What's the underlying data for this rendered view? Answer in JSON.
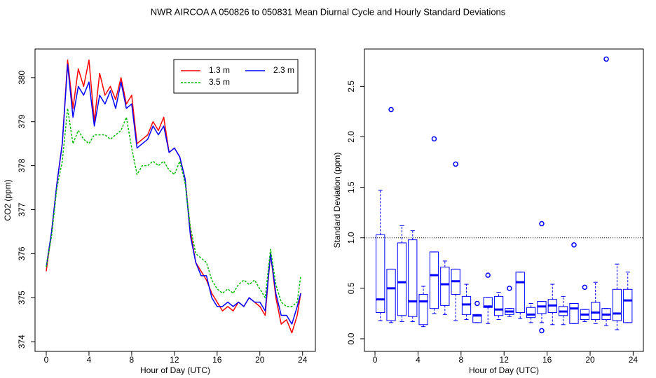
{
  "title": "NWR   AIRCOA A   050826 to 050831   Mean Diurnal Cycle and Hourly Standard Deviations",
  "chart_data": [
    {
      "type": "line",
      "xlabel": "Hour of Day (UTC)",
      "ylabel": "CO2 (ppm)",
      "x": [
        0,
        0.5,
        1,
        1.5,
        2,
        2.5,
        3,
        3.5,
        4,
        4.5,
        5,
        5.5,
        6,
        6.5,
        7,
        7.5,
        8,
        8.5,
        9,
        9.5,
        10,
        10.5,
        11,
        11.5,
        12,
        12.5,
        13,
        13.5,
        14,
        14.5,
        15,
        15.5,
        16,
        16.5,
        17,
        17.5,
        18,
        18.5,
        19,
        19.5,
        20,
        20.5,
        21,
        21.5,
        22,
        22.5,
        23,
        23.5,
        23.83
      ],
      "series": [
        {
          "name": "1.3 m",
          "color": "#ff0000",
          "linestyle": "solid",
          "values": [
            375.6,
            376.5,
            377.6,
            378.5,
            380.4,
            379.3,
            380.2,
            379.8,
            380.4,
            379.0,
            380.1,
            379.6,
            379.8,
            379.5,
            380.0,
            379.4,
            379.6,
            378.5,
            378.6,
            378.7,
            379.0,
            378.8,
            379.1,
            378.3,
            378.4,
            378.2,
            377.7,
            376.5,
            375.8,
            375.6,
            375.4,
            375.1,
            374.9,
            374.7,
            374.8,
            374.7,
            374.9,
            374.8,
            375.0,
            374.9,
            374.8,
            374.6,
            376.0,
            375.0,
            374.4,
            374.5,
            374.2,
            374.6,
            375.1
          ]
        },
        {
          "name": "2.3 m",
          "color": "#0000ff",
          "linestyle": "solid",
          "values": [
            375.7,
            376.5,
            377.6,
            378.5,
            380.3,
            379.1,
            379.8,
            379.6,
            379.9,
            378.9,
            379.6,
            379.4,
            379.7,
            379.3,
            379.9,
            379.3,
            379.4,
            378.4,
            378.5,
            378.6,
            378.9,
            378.7,
            378.9,
            378.3,
            378.4,
            378.2,
            377.7,
            376.4,
            375.8,
            375.5,
            375.5,
            375.0,
            374.8,
            374.8,
            374.9,
            374.8,
            374.9,
            374.8,
            375.0,
            374.9,
            374.9,
            374.7,
            376.0,
            375.1,
            374.6,
            374.6,
            374.4,
            374.8,
            375.1
          ]
        },
        {
          "name": "3.5 m",
          "color": "#00bb00",
          "linestyle": "dashed",
          "values": [
            375.7,
            376.4,
            377.5,
            378.1,
            379.3,
            378.5,
            378.8,
            378.6,
            378.5,
            378.7,
            378.7,
            378.7,
            378.6,
            378.7,
            378.8,
            379.1,
            378.4,
            377.8,
            378.0,
            378.0,
            378.1,
            378.0,
            378.1,
            377.9,
            377.8,
            378.1,
            377.6,
            376.6,
            376.0,
            375.9,
            375.8,
            375.4,
            375.2,
            375.1,
            375.2,
            375.1,
            375.3,
            375.4,
            375.3,
            375.4,
            375.2,
            375.0,
            376.1,
            375.3,
            374.9,
            374.8,
            374.8,
            374.9,
            375.5
          ]
        }
      ],
      "xlim": [
        -1.05,
        25.2
      ],
      "xticks": [
        0,
        4,
        8,
        12,
        16,
        20,
        24
      ],
      "ylim": [
        373.78,
        380.65
      ],
      "yticks": [
        374,
        375,
        376,
        377,
        378,
        379,
        380
      ],
      "legend": "topright"
    },
    {
      "type": "box",
      "xlabel": "Hour of Day (UTC)",
      "ylabel": "Standard Deviation (ppm)",
      "color": "#0000ff",
      "positions": [
        0.5,
        1.5,
        2.5,
        3.5,
        4.5,
        5.5,
        6.5,
        7.5,
        8.5,
        9.5,
        10.5,
        11.5,
        12.5,
        13.5,
        14.5,
        15.5,
        16.5,
        17.5,
        18.5,
        19.5,
        20.5,
        21.5,
        22.5,
        23.5
      ],
      "whisker_low": [
        0.18,
        0.16,
        0.17,
        0.17,
        0.12,
        0.25,
        0.24,
        0.18,
        0.19,
        0.16,
        0.15,
        0.19,
        0.22,
        0.2,
        0.16,
        0.16,
        0.14,
        0.14,
        0.15,
        0.17,
        0.15,
        0.13,
        0.09,
        0.16
      ],
      "q1": [
        0.26,
        0.18,
        0.23,
        0.22,
        0.14,
        0.3,
        0.33,
        0.44,
        0.24,
        0.16,
        0.31,
        0.23,
        0.24,
        0.26,
        0.21,
        0.25,
        0.26,
        0.23,
        0.15,
        0.19,
        0.19,
        0.19,
        0.18,
        0.16
      ],
      "median": [
        0.39,
        0.5,
        0.56,
        0.37,
        0.37,
        0.63,
        0.54,
        0.57,
        0.34,
        0.23,
        0.32,
        0.29,
        0.27,
        0.56,
        0.24,
        0.32,
        0.33,
        0.27,
        0.3,
        0.24,
        0.26,
        0.24,
        0.25,
        0.38
      ],
      "q3": [
        1.03,
        0.69,
        0.95,
        0.98,
        0.44,
        0.86,
        0.71,
        0.69,
        0.42,
        0.24,
        0.41,
        0.42,
        0.3,
        0.66,
        0.31,
        0.37,
        0.39,
        0.32,
        0.35,
        0.29,
        0.36,
        0.3,
        0.49,
        0.49
      ],
      "whisker_high": [
        1.47,
        0.69,
        1.12,
        1.07,
        0.52,
        0.86,
        0.77,
        0.69,
        0.54,
        0.24,
        0.41,
        0.46,
        0.3,
        0.66,
        0.35,
        0.37,
        0.54,
        0.42,
        0.35,
        0.29,
        0.56,
        0.3,
        0.74,
        0.66
      ],
      "outliers": {
        "x": [
          1.5,
          5.5,
          7.5,
          9.5,
          10.5,
          12.5,
          15.5,
          15.5,
          18.5,
          19.5,
          21.5
        ],
        "y": [
          2.27,
          1.98,
          1.73,
          0.35,
          0.63,
          0.5,
          1.14,
          0.08,
          0.93,
          0.51,
          2.77
        ]
      },
      "hline": 1,
      "xlim": [
        -0.98,
        24.95
      ],
      "xticks": [
        0,
        4,
        8,
        12,
        16,
        20,
        24
      ],
      "ylim": [
        -0.125,
        2.87
      ],
      "yticks": [
        {
          "value": 0,
          "label": "0.0"
        },
        0.5,
        {
          "value": 1,
          "label": "1.0"
        },
        1.5,
        {
          "value": 2,
          "label": "2.0"
        },
        2.5
      ]
    }
  ]
}
